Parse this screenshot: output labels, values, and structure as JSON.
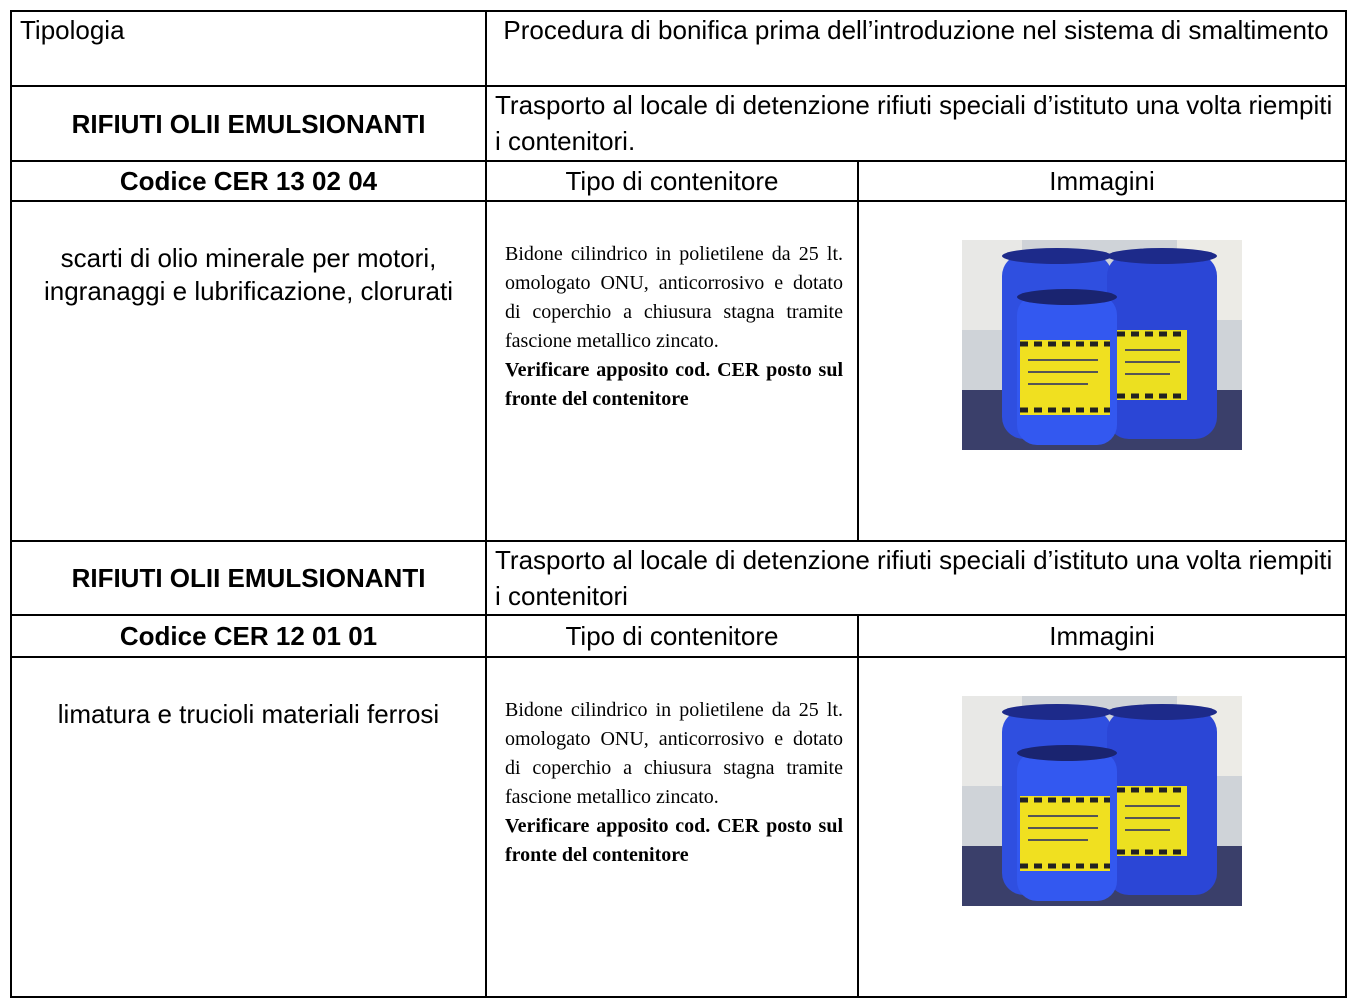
{
  "header": {
    "type_label": "Tipologia",
    "procedure_label": "Procedura di bonifica prima dell’introduzione nel sistema di smaltimento"
  },
  "sections": [
    {
      "category": "RIFIUTI OLII EMULSIONANTI",
      "procedure": "Trasporto al locale di detenzione rifiuti speciali d’istituto una volta riempiti i contenitori.",
      "code": "Codice CER 13 02 04",
      "container_label": "Tipo di contenitore",
      "images_label": "Immagini",
      "description": "scarti di olio minerale per motori, ingranaggi e lubrificazione, clorurati",
      "container": "Bidone cilindrico in polietilene da 25 lt. omologato ONU, anticorrosivo e dotato di coperchio a chiusura stagna tramite fascione metallico zincato.",
      "note": "Verificare apposito cod. CER posto sul fronte del contenitore"
    },
    {
      "category": "RIFIUTI OLII EMULSIONANTI",
      "procedure": "Trasporto al locale di detenzione rifiuti speciali d’istituto una volta riempiti i contenitori",
      "code": "Codice CER 12 01 01",
      "container_label": "Tipo di contenitore",
      "images_label": "Immagini",
      "description": "limatura e trucioli materiali ferrosi",
      "container": "Bidone cilindrico in polietilene da 25 lt. omologato ONU, anticorrosivo e dotato di coperchio a chiusura stagna tramite fascione metallico zincato.",
      "note": "Verificare apposito cod. CER posto sul fronte del contenitore"
    }
  ]
}
